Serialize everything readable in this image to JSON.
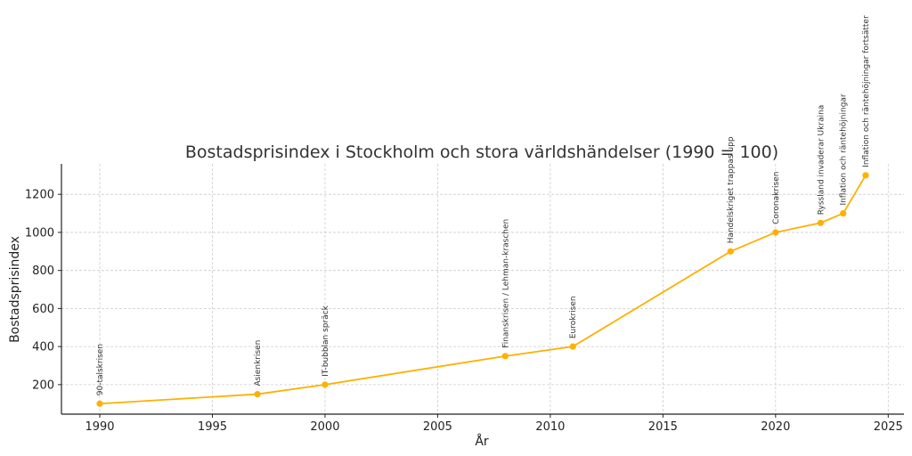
{
  "chart_data": {
    "type": "line",
    "title": "Bostadsprisindex i Stockholm och stora världshändelser (1990 = 100)",
    "xlabel": "År",
    "ylabel": "Bostadsprisindex",
    "xlim": [
      1988.3,
      2025.7
    ],
    "ylim": [
      45,
      1360
    ],
    "xticks": [
      1990,
      1995,
      2000,
      2005,
      2010,
      2015,
      2020,
      2025
    ],
    "yticks": [
      200,
      400,
      600,
      800,
      1000,
      1200
    ],
    "grid": true,
    "line_color": "#FFB000",
    "series": [
      {
        "x": [
          1990,
          1997,
          2000,
          2008,
          2011,
          2018,
          2020,
          2022,
          2023,
          2024
        ],
        "values": [
          100,
          150,
          200,
          350,
          400,
          900,
          1000,
          1050,
          1100,
          1300
        ]
      }
    ],
    "annotations": [
      {
        "x": 1990,
        "y": 100,
        "text": "90-talskrisen"
      },
      {
        "x": 1997,
        "y": 150,
        "text": "Asienkrisen"
      },
      {
        "x": 2000,
        "y": 200,
        "text": "IT-bubblan spräck"
      },
      {
        "x": 2008,
        "y": 350,
        "text": "Finanskrisen / Lehman-kraschen"
      },
      {
        "x": 2011,
        "y": 400,
        "text": "Eurokrisen"
      },
      {
        "x": 2018,
        "y": 900,
        "text": "Handelskriget trappas upp"
      },
      {
        "x": 2020,
        "y": 1000,
        "text": "Coronakrisen"
      },
      {
        "x": 2022,
        "y": 1050,
        "text": "Ryssland invaderar Ukraina"
      },
      {
        "x": 2023,
        "y": 1100,
        "text": "Inflation och räntehöjningar"
      },
      {
        "x": 2024,
        "y": 1300,
        "text": "Inflation och räntehöjningar fortsätter"
      }
    ]
  }
}
